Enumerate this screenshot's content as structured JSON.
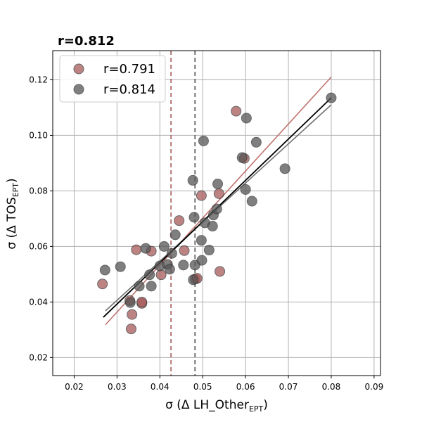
{
  "chart_data": {
    "type": "scatter",
    "title": "r=0.812",
    "xlabel": {
      "prefix": "σ (Δ LH_Other",
      "sub": "EPT",
      "suffix": ")"
    },
    "ylabel": {
      "prefix": "σ (Δ TOS",
      "sub": "EPT",
      "suffix": ")"
    },
    "xlim": [
      0.015,
      0.0915
    ],
    "ylim": [
      0.0135,
      0.1305
    ],
    "xticks": [
      0.02,
      0.03,
      0.04,
      0.05,
      0.06,
      0.07,
      0.08,
      0.09
    ],
    "yticks": [
      0.02,
      0.04,
      0.06,
      0.08,
      0.1,
      0.12
    ],
    "xtick_labels": [
      "0.02",
      "0.03",
      "0.04",
      "0.05",
      "0.06",
      "0.07",
      "0.08",
      "0.09"
    ],
    "ytick_labels": [
      "0.02",
      "0.04",
      "0.06",
      "0.08",
      "0.10",
      "0.12"
    ],
    "grid": true,
    "legend_position": "top-left",
    "series": [
      {
        "name": "r=0.791",
        "color": "#a85a5a",
        "line_color": "#c0736e",
        "fit": [
          [
            0.0273,
            0.0318
          ],
          [
            0.08,
            0.121
          ]
        ],
        "vline": 0.0426,
        "points": [
          [
            0.0266,
            0.0465
          ],
          [
            0.033,
            0.0405
          ],
          [
            0.0335,
            0.0355
          ],
          [
            0.0333,
            0.0303
          ],
          [
            0.0345,
            0.0588
          ],
          [
            0.0358,
            0.0395
          ],
          [
            0.0358,
            0.04
          ],
          [
            0.038,
            0.0583
          ],
          [
            0.0403,
            0.0498
          ],
          [
            0.0445,
            0.0693
          ],
          [
            0.0457,
            0.0585
          ],
          [
            0.0483,
            0.0483
          ],
          [
            0.0487,
            0.0485
          ],
          [
            0.0497,
            0.0783
          ],
          [
            0.0538,
            0.079
          ],
          [
            0.054,
            0.051
          ],
          [
            0.0578,
            0.1087
          ],
          [
            0.0597,
            0.0917
          ]
        ]
      },
      {
        "name": "r=0.814",
        "color": "#555555",
        "line_color": "#707070",
        "fit": [
          [
            0.0273,
            0.0368
          ],
          [
            0.08,
            0.111
          ]
        ],
        "vline": 0.0482,
        "points": [
          [
            0.0272,
            0.0515
          ],
          [
            0.0308,
            0.0527
          ],
          [
            0.0331,
            0.0398
          ],
          [
            0.0352,
            0.0457
          ],
          [
            0.0367,
            0.0593
          ],
          [
            0.0376,
            0.0498
          ],
          [
            0.038,
            0.0457
          ],
          [
            0.04,
            0.053
          ],
          [
            0.041,
            0.06
          ],
          [
            0.0418,
            0.0535
          ],
          [
            0.0423,
            0.0518
          ],
          [
            0.0428,
            0.0575
          ],
          [
            0.0436,
            0.0642
          ],
          [
            0.0455,
            0.0533
          ],
          [
            0.0477,
            0.0838
          ],
          [
            0.0478,
            0.048
          ],
          [
            0.048,
            0.0705
          ],
          [
            0.0482,
            0.0533
          ],
          [
            0.0497,
            0.0622
          ],
          [
            0.0498,
            0.055
          ],
          [
            0.0502,
            0.098
          ],
          [
            0.0505,
            0.0685
          ],
          [
            0.0515,
            0.0587
          ],
          [
            0.0523,
            0.0673
          ],
          [
            0.0525,
            0.0713
          ],
          [
            0.0533,
            0.0735
          ],
          [
            0.0535,
            0.0825
          ],
          [
            0.0592,
            0.092
          ],
          [
            0.06,
            0.0805
          ],
          [
            0.0602,
            0.1062
          ],
          [
            0.0615,
            0.0763
          ],
          [
            0.0625,
            0.0975
          ],
          [
            0.0692,
            0.088
          ],
          [
            0.08,
            0.1135
          ]
        ]
      }
    ],
    "overall_fit": {
      "color": "#000000",
      "line": [
        [
          0.0268,
          0.0345
        ],
        [
          0.08,
          0.1135
        ]
      ]
    }
  }
}
